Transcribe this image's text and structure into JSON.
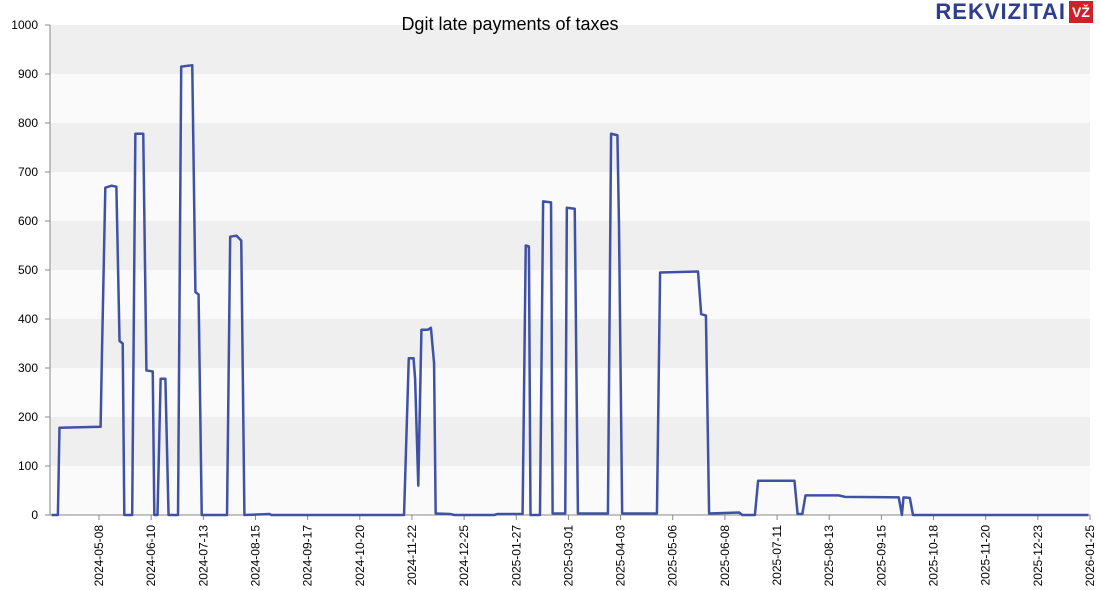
{
  "logo": {
    "brand": "REKVIZITAI",
    "badge": "VŽ"
  },
  "chart_data": {
    "type": "line",
    "title": "Dgit late payments of taxes",
    "x": [
      "2024-04-08",
      "2024-04-12",
      "2024-04-13",
      "2024-05-09",
      "2024-05-10",
      "2024-05-12",
      "2024-05-16",
      "2024-05-19",
      "2024-05-21",
      "2024-05-23",
      "2024-05-24",
      "2024-05-29",
      "2024-05-31",
      "2024-06-05",
      "2024-06-07",
      "2024-06-11",
      "2024-06-12",
      "2024-06-14",
      "2024-06-16",
      "2024-06-19",
      "2024-06-21",
      "2024-06-27",
      "2024-06-29",
      "2024-07-06",
      "2024-07-08",
      "2024-07-10",
      "2024-07-12",
      "2024-07-28",
      "2024-07-30",
      "2024-08-03",
      "2024-08-06",
      "2024-08-08",
      "2024-08-24",
      "2024-08-25",
      "2024-11-17",
      "2024-11-20",
      "2024-11-23",
      "2024-11-24",
      "2024-11-26",
      "2024-11-28",
      "2024-12-02",
      "2024-12-04",
      "2024-12-06",
      "2024-12-07",
      "2024-12-16",
      "2024-12-19",
      "2025-01-13",
      "2025-01-15",
      "2025-01-31",
      "2025-02-02",
      "2025-02-04",
      "2025-02-05",
      "2025-02-11",
      "2025-02-13",
      "2025-02-18",
      "2025-02-19",
      "2025-02-27",
      "2025-02-28",
      "2025-03-05",
      "2025-03-07",
      "2025-03-26",
      "2025-03-28",
      "2025-04-01",
      "2025-04-02",
      "2025-04-04",
      "2025-04-26",
      "2025-04-28",
      "2025-05-22",
      "2025-05-24",
      "2025-05-27",
      "2025-05-29",
      "2025-06-17",
      "2025-06-19",
      "2025-06-27",
      "2025-06-29",
      "2025-07-22",
      "2025-07-24",
      "2025-07-27",
      "2025-07-29",
      "2025-08-19",
      "2025-08-23",
      "2025-09-26",
      "2025-09-28",
      "2025-09-29",
      "2025-10-03",
      "2025-10-05",
      "2026-01-24"
    ],
    "series": [
      {
        "name": "Dgit",
        "color": "#3f51a5",
        "values": [
          0,
          0,
          178,
          180,
          350,
          668,
          672,
          670,
          355,
          350,
          0,
          0,
          778,
          778,
          295,
          293,
          0,
          0,
          278,
          278,
          0,
          0,
          915,
          918,
          455,
          450,
          0,
          0,
          568,
          570,
          560,
          0,
          2,
          0,
          0,
          320,
          320,
          278,
          60,
          378,
          378,
          382,
          310,
          3,
          2,
          0,
          0,
          2,
          2,
          550,
          548,
          0,
          0,
          640,
          638,
          3,
          3,
          627,
          625,
          3,
          3,
          778,
          775,
          590,
          3,
          3,
          495,
          497,
          410,
          407,
          3,
          5,
          0,
          0,
          70,
          70,
          2,
          2,
          40,
          40,
          37,
          36,
          0,
          36,
          35,
          0,
          0
        ]
      }
    ],
    "xlim": [
      "2024-04-07",
      "2026-01-25"
    ],
    "xticks": [
      "2024-05-08",
      "2024-06-10",
      "2024-07-13",
      "2024-08-15",
      "2024-09-17",
      "2024-10-20",
      "2024-11-22",
      "2024-12-25",
      "2025-01-27",
      "2025-03-01",
      "2025-04-03",
      "2025-05-06",
      "2025-06-08",
      "2025-07-11",
      "2025-08-13",
      "2025-09-15",
      "2025-10-18",
      "2025-11-20",
      "2025-12-23",
      "2026-01-25"
    ],
    "ylim": [
      0,
      1000
    ],
    "yticks": [
      0,
      100,
      200,
      300,
      400,
      500,
      600,
      700,
      800,
      900,
      1000
    ],
    "grid": true
  }
}
